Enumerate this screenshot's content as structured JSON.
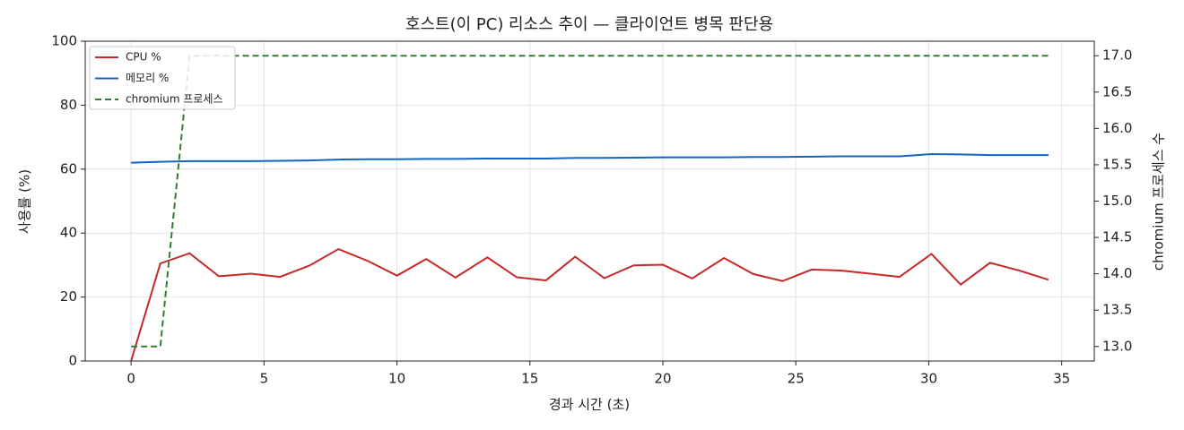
{
  "chart_data": {
    "type": "line",
    "title": "호스트(이 PC) 리소스 추이 — 클라이언트 병목 판단용",
    "xlabel": "경과 시간 (초)",
    "ylabel": "사용률 (%)",
    "y2label": "chromium 프로세스 수",
    "x": [
      0,
      1.1,
      2.2,
      3.3,
      4.5,
      5.6,
      6.7,
      7.8,
      8.9,
      10.0,
      11.1,
      12.2,
      13.4,
      14.5,
      15.6,
      16.7,
      17.8,
      18.9,
      20.0,
      21.1,
      22.3,
      23.4,
      24.5,
      25.6,
      26.7,
      27.8,
      28.9,
      30.1,
      31.2,
      32.3,
      33.4,
      34.5
    ],
    "series": [
      {
        "name": "CPU %",
        "color": "#c62828",
        "linestyle": "solid",
        "axis": "y",
        "values": [
          0,
          30.5,
          33.7,
          26.5,
          27.3,
          26.3,
          29.8,
          35.0,
          31.3,
          26.7,
          31.9,
          26.1,
          32.4,
          26.2,
          25.2,
          32.6,
          25.9,
          29.9,
          30.1,
          25.8,
          32.2,
          27.2,
          25.0,
          28.6,
          28.3,
          27.3,
          26.3,
          33.5,
          23.9,
          30.7,
          28.3,
          25.4
        ]
      },
      {
        "name": "메모리 %",
        "color": "#1565c0",
        "linestyle": "solid",
        "axis": "y",
        "values": [
          62.0,
          62.3,
          62.5,
          62.5,
          62.5,
          62.6,
          62.7,
          63.0,
          63.1,
          63.1,
          63.2,
          63.2,
          63.3,
          63.3,
          63.3,
          63.5,
          63.5,
          63.6,
          63.7,
          63.7,
          63.7,
          63.8,
          63.8,
          63.9,
          64.0,
          64.0,
          64.0,
          64.7,
          64.6,
          64.4,
          64.4,
          64.4
        ]
      },
      {
        "name": "chromium 프로세스",
        "color": "#2e7d32",
        "linestyle": "dashed",
        "axis": "y2",
        "values": [
          13,
          13,
          17,
          17,
          17,
          17,
          17,
          17,
          17,
          17,
          17,
          17,
          17,
          17,
          17,
          17,
          17,
          17,
          17,
          17,
          17,
          17,
          17,
          17,
          17,
          17,
          17,
          17,
          17,
          17,
          17,
          17
        ]
      }
    ],
    "xlim": [
      -1.725,
      36.225
    ],
    "xticks": [
      0,
      5,
      10,
      15,
      20,
      25,
      30,
      35
    ],
    "ylim": [
      0,
      100
    ],
    "yticks": [
      0,
      20,
      40,
      60,
      80,
      100
    ],
    "y2lim": [
      12.8,
      17.2
    ],
    "y2ticks": [
      {
        "value": 13,
        "label": "13.0"
      },
      13.5,
      {
        "value": 14,
        "label": "14.0"
      },
      14.5,
      {
        "value": 15,
        "label": "15.0"
      },
      15.5,
      {
        "value": 16,
        "label": "16.0"
      },
      16.5,
      {
        "value": 17,
        "label": "17.0"
      }
    ],
    "grid": true,
    "legend": "upper left"
  }
}
